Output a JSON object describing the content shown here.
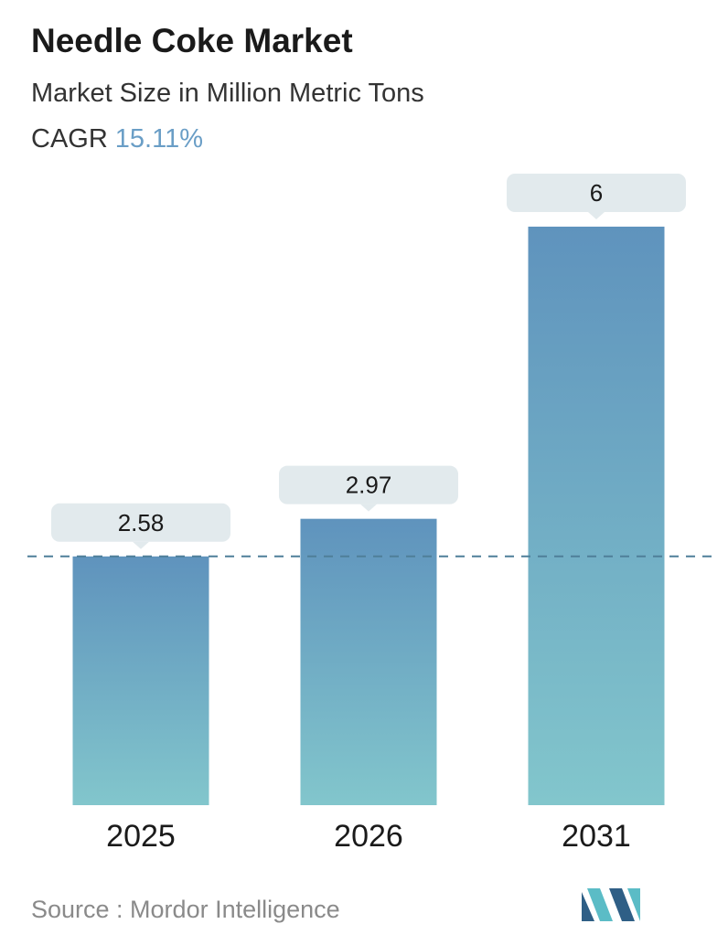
{
  "header": {
    "title": "Needle Coke Market",
    "subtitle": "Market Size in Million Metric Tons",
    "cagr_label": "CAGR",
    "cagr_value": "15.11%"
  },
  "footer": {
    "source": "Source :  Mordor Intelligence",
    "logo_icon": "mordor-intelligence-logo-icon"
  },
  "colors": {
    "bar_top": "#5f93bd",
    "bar_bottom": "#82c6cc",
    "label_bg": "#e2eaed",
    "reference_line": "#4f7f99",
    "cagr": "#6a9ec6",
    "logo_dark": "#2f5f86",
    "logo_light": "#5bbcc6"
  },
  "chart_data": {
    "type": "bar",
    "categories": [
      "2025",
      "2026",
      "2031"
    ],
    "values": [
      2.58,
      2.97,
      6
    ],
    "value_labels": [
      "2.58",
      "2.97",
      "6"
    ],
    "title": "Needle Coke Market",
    "subtitle": "Market Size in Million Metric Tons",
    "ylim": [
      0,
      6
    ],
    "grid": false,
    "reference_line": {
      "style": "dashed",
      "value": 2.58
    }
  }
}
